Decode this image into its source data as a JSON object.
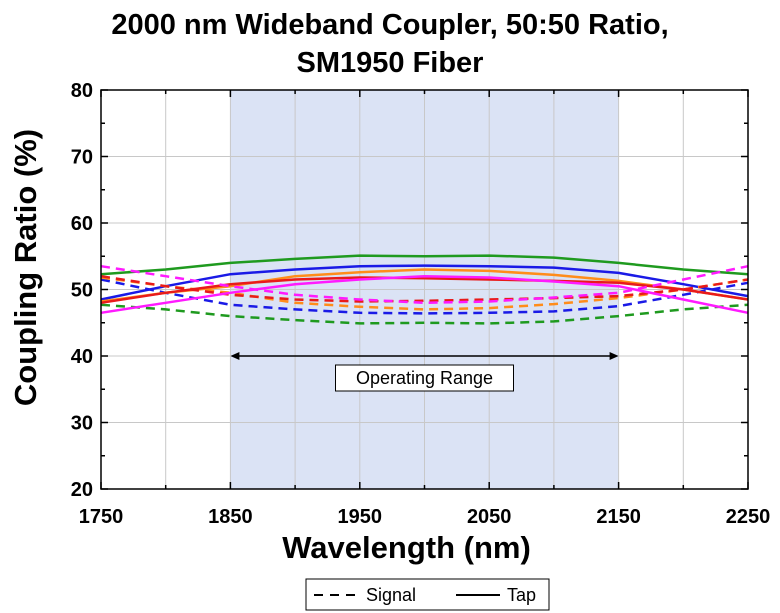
{
  "chart_data": {
    "type": "line",
    "title_line1": "2000 nm Wideband Coupler, 50:50 Ratio,",
    "title_line2": "SM1950 Fiber",
    "xlabel": "Wavelength (nm)",
    "ylabel": "Coupling Ratio (%)",
    "xlim": [
      1750,
      2250
    ],
    "ylim": [
      20,
      80
    ],
    "xticks": [
      1750,
      1850,
      1950,
      2050,
      2150,
      2250
    ],
    "yticks": [
      20,
      30,
      40,
      50,
      60,
      70,
      80
    ],
    "grid": true,
    "operating_range": {
      "x_start": 1850,
      "x_end": 2150,
      "label": "Operating Range",
      "arrow_y": 40
    },
    "legend": {
      "position": "bottom-center",
      "entries": [
        {
          "label": "Signal",
          "style": "dashed"
        },
        {
          "label": "Tap",
          "style": "solid"
        }
      ]
    },
    "x": [
      1750,
      1800,
      1850,
      1900,
      1950,
      2000,
      2050,
      2100,
      2150,
      2200,
      2250
    ],
    "series": [
      {
        "color": "#1f9a1f",
        "style": "solid",
        "values": [
          52.3,
          53.0,
          54.0,
          54.6,
          55.1,
          55.0,
          55.1,
          54.8,
          54.0,
          53.0,
          52.3
        ]
      },
      {
        "color": "#1f9a1f",
        "style": "dashed",
        "values": [
          47.7,
          47.0,
          46.0,
          45.4,
          44.9,
          45.0,
          44.9,
          45.2,
          46.0,
          47.0,
          47.7
        ]
      },
      {
        "color": "#1a1ae6",
        "style": "solid",
        "values": [
          48.5,
          50.5,
          52.3,
          53.0,
          53.5,
          53.6,
          53.5,
          53.3,
          52.5,
          50.8,
          49.0
        ]
      },
      {
        "color": "#1a1ae6",
        "style": "dashed",
        "values": [
          51.5,
          49.5,
          47.7,
          47.0,
          46.5,
          46.4,
          46.5,
          46.7,
          47.5,
          49.2,
          51.0
        ]
      },
      {
        "color": "#ff8c1a",
        "style": "solid",
        "values": [
          48.2,
          49.5,
          50.5,
          52.0,
          52.6,
          53.0,
          52.8,
          52.2,
          51.3,
          50.0,
          48.5
        ]
      },
      {
        "color": "#ff8c1a",
        "style": "dashed",
        "values": [
          51.8,
          50.5,
          49.5,
          48.0,
          47.4,
          47.0,
          47.2,
          47.8,
          48.7,
          50.0,
          51.5
        ]
      },
      {
        "color": "#e81a1a",
        "style": "solid",
        "values": [
          48.0,
          49.5,
          50.8,
          51.5,
          51.8,
          51.7,
          51.5,
          51.3,
          51.0,
          50.0,
          48.5
        ]
      },
      {
        "color": "#e81a1a",
        "style": "dashed",
        "values": [
          52.0,
          50.5,
          49.2,
          48.5,
          48.2,
          48.3,
          48.5,
          48.7,
          49.0,
          50.0,
          51.5
        ]
      },
      {
        "color": "#ff1aff",
        "style": "solid",
        "values": [
          46.5,
          48.0,
          49.5,
          50.8,
          51.5,
          52.0,
          51.8,
          51.2,
          50.5,
          48.5,
          46.5
        ]
      },
      {
        "color": "#ff1aff",
        "style": "dashed",
        "values": [
          53.5,
          52.0,
          50.5,
          49.2,
          48.5,
          48.0,
          48.2,
          48.8,
          49.5,
          51.5,
          53.5
        ]
      }
    ]
  }
}
